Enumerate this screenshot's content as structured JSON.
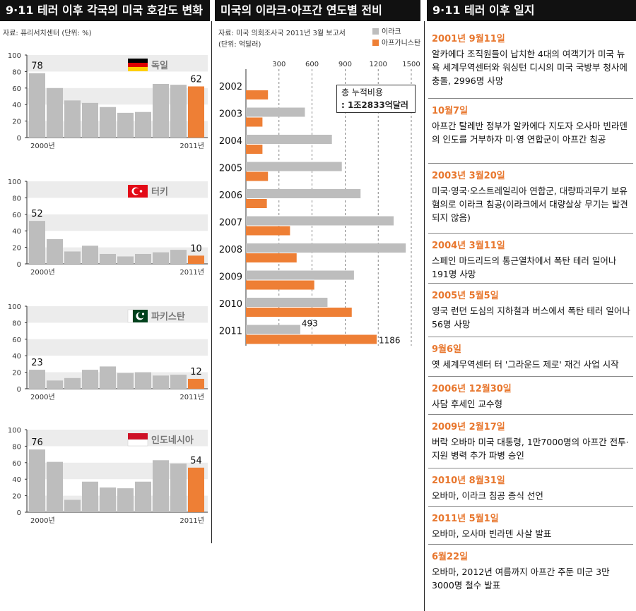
{
  "colors": {
    "gray": "#bdbdbd",
    "orange": "#ee7f35",
    "band": "#ececec",
    "header_bg": "#111111"
  },
  "left": {
    "header": "9·11 테러 이후 각국의 미국 호감도 변화",
    "source": "자료: 퓨리서치센터 (단위: %)"
  },
  "middle": {
    "header": "미국의 이라크·아프간 연도별 전비",
    "source_line1": "자료: 미국 의회조사국 2011년 3월 보고서",
    "source_line2": "(단위: 억달러)",
    "total_label": "총 누적비용",
    "total_value": ": 1조2833억달러"
  },
  "right": {
    "header": "9·11 테러 이후 일지",
    "events": [
      {
        "date": "2001년 9월11일",
        "desc": "알카에다 조직원들이 납치한 4대의 여객기가 미국 뉴욕 세계무역센터와 워싱턴 디시의 미국 국방부 청사에 충돌, 2996명 사망"
      },
      {
        "date": "10월7일",
        "desc": "아프간 탈레반 정부가 알카에다 지도자 오사마 빈라덴의 인도를 거부하자 미·영 연합군이 아프간 침공"
      },
      {
        "date": "2003년 3월20일",
        "desc": "미국·영국·오스트레일리아 연합군, 대량파괴무기 보유 혐의로 이라크 침공(이라크에서 대량살상 무기는 발견되지 않음)"
      },
      {
        "date": "2004년 3월11일",
        "desc": "스페인 마드리드의 통근열차에서 폭탄 테러 일어나 191명 사망"
      },
      {
        "date": "2005년 5월5일",
        "desc": "영국 런던 도심의 지하철과 버스에서 폭탄 테러 일어나 56명 사망"
      },
      {
        "date": "9월6일",
        "desc": "옛 세계무역센터 터 '그라운드 제로' 재건 사업 시작"
      },
      {
        "date": "2006년 12월30일",
        "desc": "사담 후세인 교수형"
      },
      {
        "date": "2009년 2월17일",
        "desc": "버락 오바마 미국 대통령, 1만7000명의 아프간 전투·지원 병력 추가 파병 승인"
      },
      {
        "date": "2010년 8월31일",
        "desc": "오바마, 이라크 침공 종식 선언"
      },
      {
        "date": "2011년 5월1일",
        "desc": "오바마, 오사마 빈라덴 사살 발표"
      },
      {
        "date": "6월22일",
        "desc": "오바마, 2012년 여름까지 아프간 주둔 미군 3만 3000명 철수 발표"
      }
    ]
  },
  "chart_data": [
    {
      "type": "bar",
      "title": "독일",
      "flag": "germany-flag",
      "values": [
        78,
        60,
        45,
        42,
        37,
        30,
        31,
        65,
        64,
        62
      ],
      "first_label": "78",
      "last_label": "62",
      "ylim": [
        0,
        100
      ],
      "yticks": [
        "0",
        "20",
        "40",
        "60",
        "80",
        "100"
      ],
      "xstart": "2000년",
      "xend": "2011년"
    },
    {
      "type": "bar",
      "title": "터키",
      "flag": "turkey-flag",
      "values": [
        52,
        30,
        15,
        22,
        12,
        9,
        12,
        14,
        17,
        10
      ],
      "first_label": "52",
      "last_label": "10",
      "ylim": [
        0,
        100
      ],
      "yticks": [
        "0",
        "20",
        "40",
        "60",
        "80",
        "100"
      ],
      "xstart": "2000년",
      "xend": "2011년"
    },
    {
      "type": "bar",
      "title": "파키스탄",
      "flag": "pakistan-flag",
      "values": [
        23,
        10,
        13,
        23,
        27,
        19,
        20,
        16,
        17,
        12
      ],
      "first_label": "23",
      "last_label": "12",
      "ylim": [
        0,
        100
      ],
      "yticks": [
        "0",
        "20",
        "40",
        "60",
        "80",
        "100"
      ],
      "xstart": "2000년",
      "xend": "2011년"
    },
    {
      "type": "bar",
      "title": "인도네시아",
      "flag": "indonesia-flag",
      "values": [
        76,
        61,
        15,
        37,
        30,
        29,
        37,
        63,
        59,
        54
      ],
      "first_label": "76",
      "last_label": "54",
      "ylim": [
        0,
        100
      ],
      "yticks": [
        "0",
        "20",
        "40",
        "60",
        "80",
        "100"
      ],
      "xstart": "2000년",
      "xend": "2011년"
    },
    {
      "type": "bar",
      "orientation": "horizontal",
      "title": "미국의 이라크·아프간 연도별 전비",
      "categories": [
        "2002",
        "2003",
        "2004",
        "2005",
        "2006",
        "2007",
        "2008",
        "2009",
        "2010",
        "2011"
      ],
      "xticks": [
        "300",
        "600",
        "900",
        "1200",
        "1500"
      ],
      "xlim": [
        0,
        1500
      ],
      "series": [
        {
          "name": "이라크",
          "values": [
            0,
            535,
            780,
            870,
            1040,
            1340,
            1450,
            980,
            740,
            493
          ]
        },
        {
          "name": "아프가니스탄",
          "values": [
            200,
            150,
            150,
            200,
            190,
            400,
            460,
            620,
            960,
            1186
          ]
        }
      ],
      "labels": {
        "iraq_2011": "493",
        "afghan_2011": "1186"
      }
    }
  ]
}
